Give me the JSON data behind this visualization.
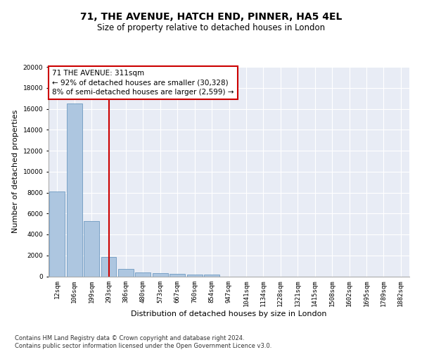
{
  "title": "71, THE AVENUE, HATCH END, PINNER, HA5 4EL",
  "subtitle": "Size of property relative to detached houses in London",
  "xlabel": "Distribution of detached houses by size in London",
  "ylabel": "Number of detached properties",
  "categories": [
    "12sqm",
    "106sqm",
    "199sqm",
    "293sqm",
    "386sqm",
    "480sqm",
    "573sqm",
    "667sqm",
    "760sqm",
    "854sqm",
    "947sqm",
    "1041sqm",
    "1134sqm",
    "1228sqm",
    "1321sqm",
    "1415sqm",
    "1508sqm",
    "1602sqm",
    "1695sqm",
    "1789sqm",
    "1882sqm"
  ],
  "values": [
    8100,
    16500,
    5300,
    1850,
    700,
    350,
    275,
    220,
    185,
    165,
    0,
    0,
    0,
    0,
    0,
    0,
    0,
    0,
    0,
    0,
    0
  ],
  "bar_color": "#adc6e0",
  "bar_edge_color": "#5b8db8",
  "vline_x": 3,
  "vline_color": "#cc0000",
  "annotation_text": "71 THE AVENUE: 311sqm\n← 92% of detached houses are smaller (30,328)\n8% of semi-detached houses are larger (2,599) →",
  "annotation_box_facecolor": "#ffffff",
  "annotation_box_edgecolor": "#cc0000",
  "footer_line1": "Contains HM Land Registry data © Crown copyright and database right 2024.",
  "footer_line2": "Contains public sector information licensed under the Open Government Licence v3.0.",
  "ylim": [
    0,
    20000
  ],
  "yticks": [
    0,
    2000,
    4000,
    6000,
    8000,
    10000,
    12000,
    14000,
    16000,
    18000,
    20000
  ],
  "plot_bg_color": "#e8ecf5",
  "fig_bg_color": "#ffffff",
  "grid_color": "#ffffff",
  "title_fontsize": 10,
  "subtitle_fontsize": 8.5,
  "tick_fontsize": 6.5,
  "ylabel_fontsize": 8,
  "xlabel_fontsize": 8,
  "annotation_fontsize": 7.5,
  "footer_fontsize": 6
}
